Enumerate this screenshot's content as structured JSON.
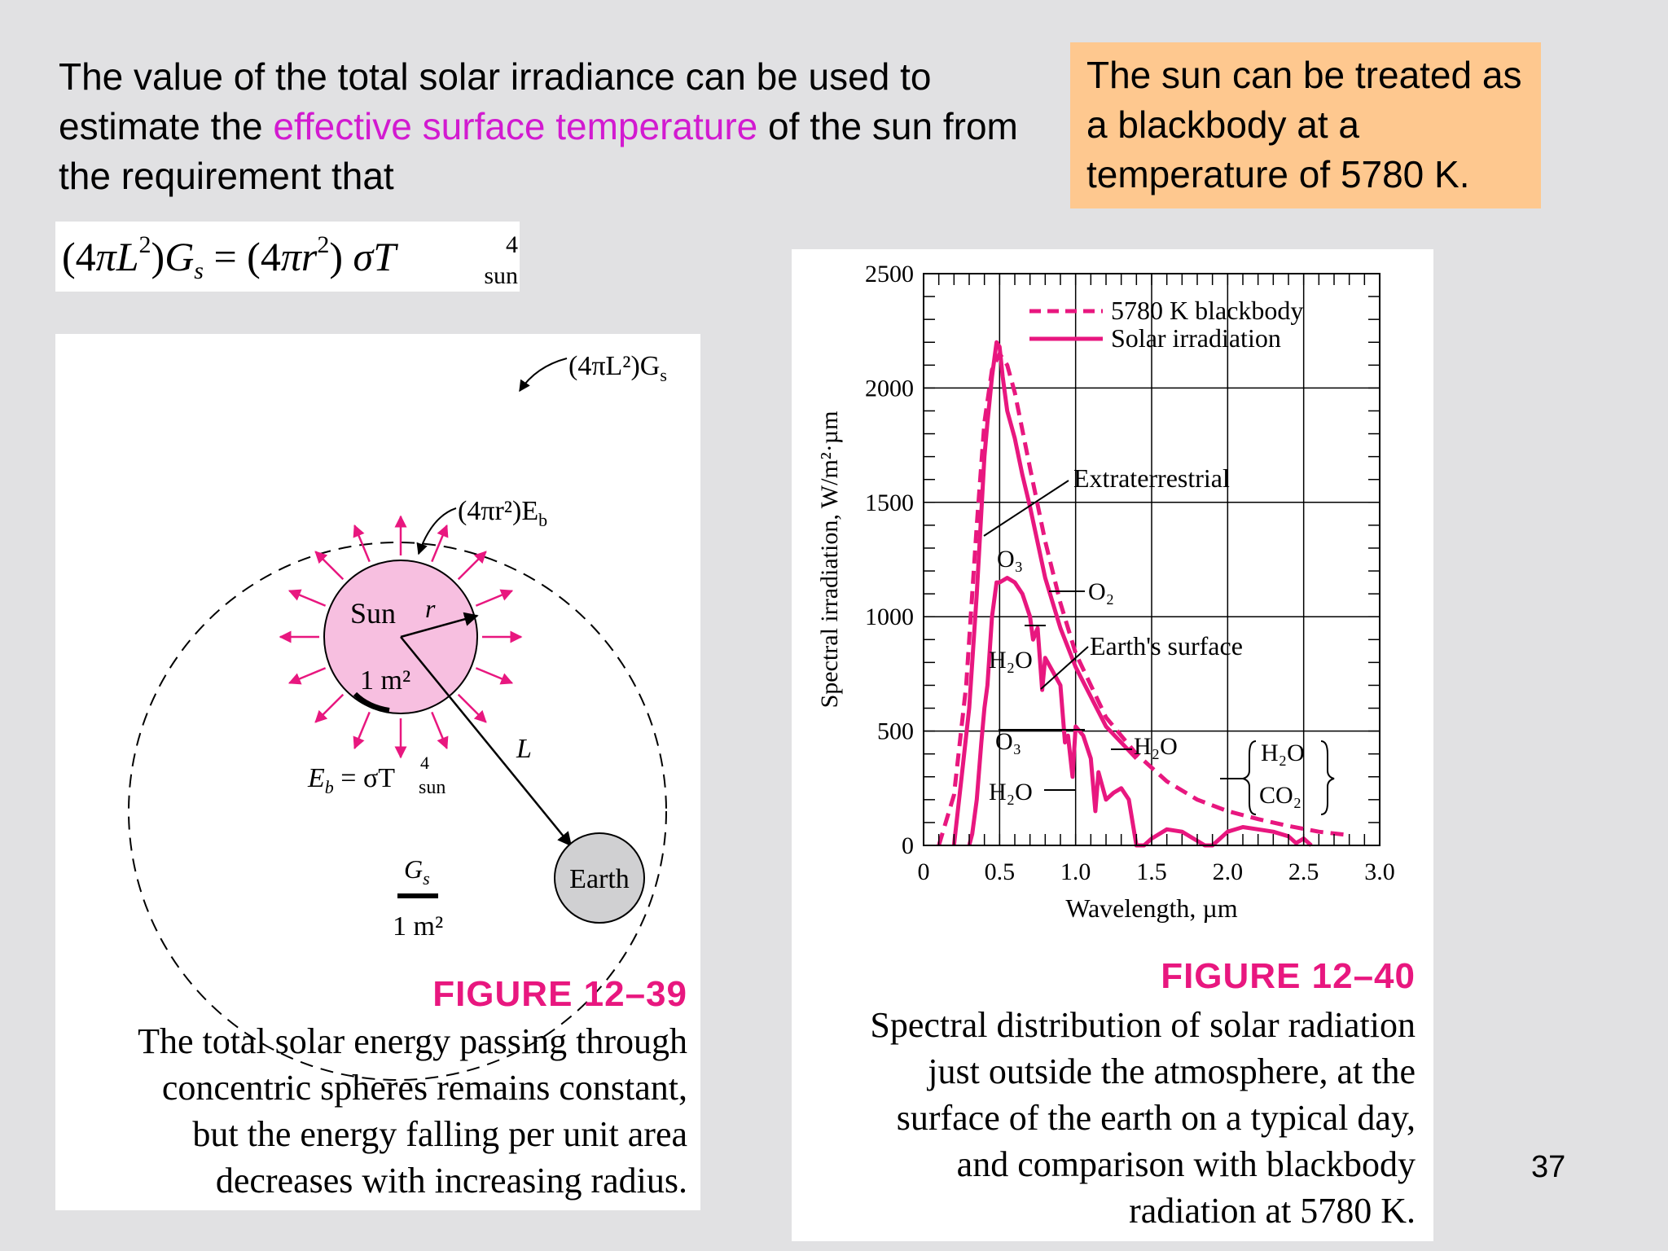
{
  "intro": {
    "part1": "The value of the total solar irradiance can be used to estimate the ",
    "highlight": "effective surface temperature",
    "part2": " of the sun from the requirement that"
  },
  "note": "The sun can be treated as a blackbody at a temperature of 5780 K.",
  "equation": {
    "lhs_open": "(4",
    "pi": "π",
    "L": "L",
    "two": "2",
    "lhs_close": ")",
    "G": "G",
    "s": "s",
    "eq": " = (4",
    "r": "r",
    "rhs_close": ") ",
    "sigma": "σ",
    "T": "T",
    "four": "4",
    "sun": "sun"
  },
  "figure_39": {
    "outer_label": "(4πL²)G",
    "outer_sub": "s",
    "inner_label": "(4πr²)E",
    "inner_sub": "b",
    "sun_label": "Sun",
    "r_label": "r",
    "area_label": "1 m²",
    "L_label": "L",
    "Eb_label": "E",
    "Eb_sub": "b",
    "Eb_eq": " = σT",
    "Eb_sup": "4",
    "Eb_sunsub": "sun",
    "earth_label": "Earth",
    "Gs_label": "G",
    "Gs_sub": "s",
    "Gs_area": "1 m²",
    "fig_label": "FIGURE 12–39",
    "caption": [
      "The total solar energy passing through",
      "concentric spheres remains constant,",
      "but the energy falling per unit area",
      "decreases with increasing radius."
    ]
  },
  "figure_40": {
    "fig_label": "FIGURE 12–40",
    "caption": [
      "Spectral distribution of solar radiation",
      "just outside the atmosphere, at the",
      "surface of the earth on a typical day,",
      "and comparison with blackbody",
      "radiation at 5780 K."
    ]
  },
  "chart_data": {
    "type": "line",
    "xlabel": "Wavelength, µm",
    "ylabel": "Spectral irradiation, W/m²·µm",
    "xlim": [
      0,
      3.0
    ],
    "ylim": [
      0,
      2500
    ],
    "xticks": [
      "0",
      "0.5",
      "1.0",
      "1.5",
      "2.0",
      "2.5",
      "3.0"
    ],
    "yticks": [
      "0",
      "500",
      "1000",
      "1500",
      "2000",
      "2500"
    ],
    "grid": true,
    "legend_position": "top-right",
    "series": [
      {
        "name": "5780 K blackbody",
        "style": "dashed",
        "color": "#e8177f",
        "x": [
          0.1,
          0.2,
          0.28,
          0.35,
          0.4,
          0.45,
          0.5,
          0.55,
          0.6,
          0.7,
          0.8,
          0.9,
          1.0,
          1.2,
          1.4,
          1.6,
          1.8,
          2.0,
          2.2,
          2.4,
          2.6,
          2.8
        ],
        "y": [
          0,
          220,
          700,
          1400,
          1850,
          2080,
          2150,
          2100,
          1980,
          1650,
          1330,
          1060,
          840,
          560,
          400,
          280,
          200,
          150,
          115,
          85,
          60,
          45
        ]
      },
      {
        "name": "Solar irradiation",
        "label": "Extraterrestrial",
        "style": "solid",
        "color": "#e8177f",
        "x": [
          0.2,
          0.25,
          0.3,
          0.35,
          0.4,
          0.42,
          0.45,
          0.48,
          0.5,
          0.52,
          0.55,
          0.6,
          0.65,
          0.7,
          0.8,
          0.9,
          1.0,
          1.2,
          1.4
        ],
        "y": [
          0,
          300,
          600,
          1100,
          1700,
          1850,
          2050,
          2200,
          2180,
          2050,
          1900,
          1780,
          1620,
          1480,
          1170,
          950,
          780,
          520,
          380
        ]
      },
      {
        "name": "Solar irradiation",
        "label": "Earth's surface",
        "style": "solid",
        "color": "#e8177f",
        "x": [
          0.3,
          0.32,
          0.35,
          0.38,
          0.4,
          0.42,
          0.45,
          0.48,
          0.5,
          0.55,
          0.6,
          0.65,
          0.7,
          0.72,
          0.75,
          0.78,
          0.8,
          0.85,
          0.9,
          0.93,
          0.95,
          0.98,
          1.0,
          1.05,
          1.1,
          1.13,
          1.15,
          1.2,
          1.25,
          1.3,
          1.35,
          1.4,
          1.45,
          1.5,
          1.55,
          1.6,
          1.7,
          1.8,
          1.85,
          1.9,
          1.95,
          2.0,
          2.1,
          2.2,
          2.3,
          2.4,
          2.45,
          2.5,
          2.55
        ],
        "y": [
          0,
          50,
          200,
          450,
          600,
          700,
          1000,
          1150,
          1150,
          1170,
          1150,
          1100,
          1000,
          900,
          950,
          680,
          820,
          760,
          700,
          450,
          480,
          300,
          520,
          480,
          380,
          150,
          320,
          200,
          230,
          250,
          200,
          0,
          0,
          30,
          50,
          70,
          60,
          20,
          0,
          0,
          30,
          60,
          80,
          70,
          60,
          40,
          10,
          30,
          0
        ]
      }
    ],
    "annotations": [
      "Extraterrestrial",
      "O₂",
      "O₃",
      "H₂O",
      "Earth's surface",
      "O₃",
      "H₂O",
      "H₂O",
      "H₂O",
      "CO₂"
    ]
  }
}
